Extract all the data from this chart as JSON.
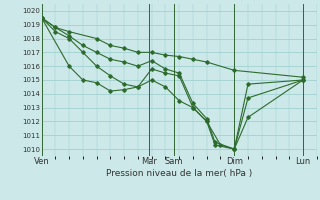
{
  "title": "",
  "xlabel": "Pression niveau de la mer( hPa )",
  "ylabel": "",
  "background_color": "#cce8e8",
  "grid_color": "#99cccc",
  "line_color": "#2d6b2d",
  "vline_color": "#336633",
  "ylim": [
    1009.5,
    1020.5
  ],
  "yticks": [
    1010,
    1011,
    1012,
    1013,
    1014,
    1015,
    1016,
    1017,
    1018,
    1019,
    1020
  ],
  "xlim": [
    0,
    10
  ],
  "day_positions": [
    0,
    3.9,
    4.8,
    7.0,
    9.5
  ],
  "day_labels": [
    "Ven",
    "Mar",
    "Sam",
    "Dim",
    "Lun"
  ],
  "lines": [
    {
      "x": [
        0.0,
        0.5,
        1.0,
        2.0,
        2.5,
        3.0,
        3.5,
        4.0,
        4.5,
        5.0,
        5.5,
        6.0,
        7.0,
        9.5
      ],
      "y": [
        1019.5,
        1018.8,
        1018.5,
        1018.0,
        1017.5,
        1017.3,
        1017.0,
        1017.0,
        1016.8,
        1016.7,
        1016.5,
        1016.3,
        1015.7,
        1015.2
      ]
    },
    {
      "x": [
        0.0,
        0.5,
        1.0,
        1.5,
        2.0,
        2.5,
        3.0,
        3.5,
        4.0,
        4.5,
        5.0,
        5.5,
        6.0,
        6.3,
        7.0,
        7.5,
        9.5
      ],
      "y": [
        1019.5,
        1018.8,
        1018.2,
        1017.5,
        1017.0,
        1016.5,
        1016.3,
        1016.0,
        1016.4,
        1015.8,
        1015.5,
        1013.3,
        1012.2,
        1010.5,
        1010.0,
        1013.7,
        1015.0
      ]
    },
    {
      "x": [
        0.0,
        0.5,
        1.0,
        1.5,
        2.0,
        2.5,
        3.0,
        3.5,
        4.0,
        4.5,
        5.0,
        5.5,
        6.0,
        6.3,
        7.0,
        7.5,
        9.5
      ],
      "y": [
        1019.5,
        1018.5,
        1018.0,
        1017.0,
        1016.0,
        1015.3,
        1014.7,
        1014.5,
        1015.0,
        1014.5,
        1013.5,
        1013.0,
        1012.0,
        1010.3,
        1010.0,
        1012.3,
        1015.0
      ]
    },
    {
      "x": [
        0.0,
        1.0,
        1.5,
        2.0,
        2.5,
        3.0,
        3.5,
        4.0,
        4.5,
        5.0,
        5.5,
        6.0,
        6.5,
        7.0,
        7.5,
        9.5
      ],
      "y": [
        1019.5,
        1016.0,
        1015.0,
        1014.8,
        1014.2,
        1014.3,
        1014.5,
        1015.8,
        1015.5,
        1015.3,
        1013.0,
        1012.0,
        1010.3,
        1010.0,
        1014.7,
        1015.0
      ]
    }
  ]
}
